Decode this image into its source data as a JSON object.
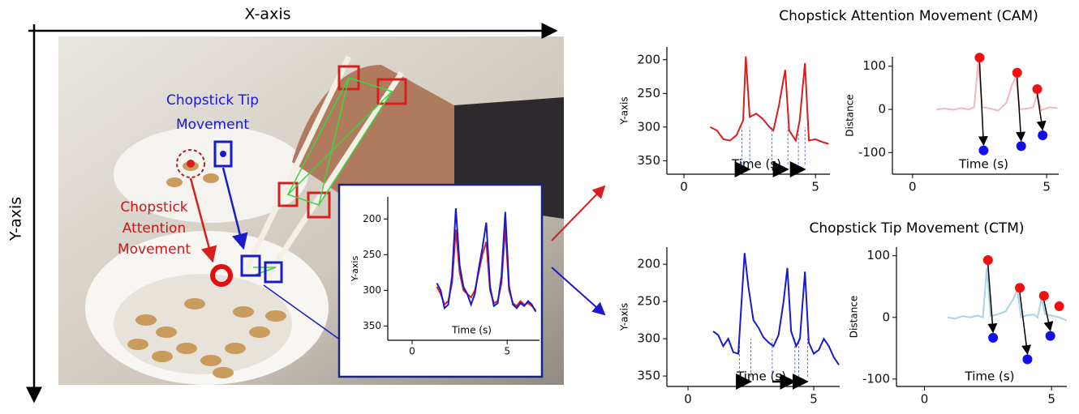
{
  "figure": {
    "x_axis_label": "X-axis",
    "y_axis_label": "Y-axis",
    "tip_label": [
      "Chopstick Tip",
      "Movement"
    ],
    "attention_label": [
      "Chopstick",
      "Attention",
      "Movement"
    ],
    "cam_title": "Chopstick Attention Movement (CAM)",
    "ctm_title": "Chopstick Tip Movement (CTM)"
  },
  "chart_data": [
    {
      "type": "line",
      "xlabel": "Time (s)",
      "ylabel": "Y-axis",
      "xlim": [
        -1.28,
        6.7
      ],
      "ylim": [
        370,
        169
      ],
      "xticks": [
        0,
        5
      ],
      "yticks": [
        200,
        250,
        300,
        350
      ],
      "series": [
        {
          "color": "#d62020",
          "x": [
            1.3,
            1.5,
            1.7,
            1.9,
            2.1,
            2.3,
            2.5,
            2.7,
            2.9,
            3.1,
            3.3,
            3.5,
            3.7,
            3.9,
            4.1,
            4.3,
            4.5,
            4.7,
            4.9,
            5.1,
            5.3,
            5.5,
            5.7,
            5.9,
            6.1,
            6.3,
            6.5
          ],
          "values": [
            295,
            305,
            320,
            315,
            290,
            215,
            275,
            300,
            305,
            310,
            300,
            275,
            250,
            232,
            300,
            318,
            315,
            290,
            212,
            300,
            318,
            322,
            315,
            320,
            318,
            322,
            328
          ]
        },
        {
          "color": "#1a1acc",
          "x": [
            1.3,
            1.5,
            1.7,
            1.9,
            2.1,
            2.3,
            2.5,
            2.7,
            2.9,
            3.1,
            3.3,
            3.5,
            3.7,
            3.9,
            4.1,
            4.3,
            4.5,
            4.7,
            4.9,
            5.1,
            5.3,
            5.5,
            5.7,
            5.9,
            6.1,
            6.3,
            6.5
          ],
          "values": [
            290,
            300,
            325,
            320,
            280,
            185,
            265,
            295,
            305,
            320,
            305,
            270,
            240,
            205,
            295,
            322,
            318,
            280,
            190,
            295,
            320,
            325,
            318,
            322,
            315,
            320,
            330
          ]
        }
      ]
    },
    {
      "type": "line",
      "xlabel": "Time (s)",
      "ylabel": "Y-axis",
      "xlim": [
        -0.65,
        5.55
      ],
      "ylim": [
        370,
        181
      ],
      "xticks": [
        0,
        5
      ],
      "yticks": [
        200,
        250,
        300,
        350
      ],
      "intervals": [
        [
          2.2,
          2.5
        ],
        [
          3.35,
          3.95
        ],
        [
          4.35,
          4.6
        ]
      ],
      "series": [
        {
          "color": "#d62020",
          "x": [
            1.0,
            1.25,
            1.5,
            1.75,
            2.0,
            2.25,
            2.35,
            2.5,
            2.75,
            3.0,
            3.25,
            3.4,
            3.6,
            3.85,
            4.0,
            4.25,
            4.4,
            4.6,
            4.75,
            5.0,
            5.25,
            5.5
          ],
          "values": [
            300,
            305,
            318,
            320,
            312,
            290,
            195,
            285,
            280,
            288,
            300,
            305,
            270,
            215,
            305,
            320,
            290,
            205,
            320,
            318,
            322,
            325
          ]
        }
      ]
    },
    {
      "type": "line",
      "xlabel": "Time (s)",
      "ylabel": "Distance",
      "arrows": true,
      "xlim": [
        -0.75,
        5.45
      ],
      "ylim": [
        -150,
        122
      ],
      "xticks": [
        0,
        5
      ],
      "yticks": [
        100,
        0,
        -100
      ],
      "series": [
        {
          "color": "#f4b6bf",
          "mode": "line",
          "x": [
            0.9,
            1.2,
            1.5,
            1.8,
            2.1,
            2.3,
            2.45,
            2.6,
            2.9,
            3.2,
            3.5,
            3.7,
            3.85,
            4.0,
            4.3,
            4.5,
            4.65,
            4.8,
            5.1,
            5.4
          ],
          "values": [
            0,
            2,
            -1,
            3,
            0,
            5,
            110,
            5,
            2,
            -3,
            15,
            55,
            75,
            0,
            2,
            5,
            35,
            -2,
            5,
            3
          ]
        },
        {
          "color": "#ee1111",
          "mode": "markers",
          "x": [
            2.5,
            3.9,
            4.65
          ],
          "values": [
            120,
            85,
            47
          ]
        },
        {
          "color": "#1010ee",
          "mode": "markers",
          "x": [
            2.65,
            4.05,
            4.85
          ],
          "values": [
            -95,
            -85,
            -60
          ]
        }
      ]
    },
    {
      "type": "line",
      "xlabel": "Time (s)",
      "ylabel": "Y-axis",
      "xlim": [
        -0.84,
        6.03
      ],
      "ylim": [
        364,
        177
      ],
      "xticks": [
        0,
        5
      ],
      "yticks": [
        200,
        250,
        300,
        350
      ],
      "intervals": [
        [
          2.05,
          2.5
        ],
        [
          3.35,
          4.25
        ],
        [
          4.4,
          4.75
        ]
      ],
      "series": [
        {
          "color": "#1a1acc",
          "x": [
            1.0,
            1.2,
            1.4,
            1.6,
            1.8,
            2.0,
            2.25,
            2.4,
            2.6,
            2.8,
            3.0,
            3.2,
            3.4,
            3.6,
            3.8,
            3.95,
            4.1,
            4.3,
            4.45,
            4.65,
            4.8,
            5.0,
            5.2,
            5.4,
            5.6,
            5.8,
            6.0
          ],
          "values": [
            290,
            295,
            310,
            300,
            318,
            320,
            185,
            230,
            275,
            285,
            298,
            305,
            310,
            295,
            250,
            205,
            290,
            310,
            300,
            210,
            305,
            320,
            315,
            300,
            310,
            325,
            335
          ]
        }
      ]
    },
    {
      "type": "line",
      "xlabel": "Time (s)",
      "ylabel": "Distance",
      "arrows": true,
      "xlim": [
        -1.1,
        5.6
      ],
      "ylim": [
        -112,
        114
      ],
      "xticks": [
        0,
        5
      ],
      "yticks": [
        100,
        0,
        -100
      ],
      "series": [
        {
          "color": "#a8d4e6",
          "mode": "line",
          "x": [
            0.9,
            1.2,
            1.5,
            1.8,
            2.1,
            2.3,
            2.45,
            2.6,
            2.9,
            3.2,
            3.5,
            3.65,
            3.8,
            4.0,
            4.3,
            4.45,
            4.6,
            4.75,
            5.0,
            5.3,
            5.6
          ],
          "values": [
            0,
            -2,
            2,
            0,
            3,
            0,
            80,
            2,
            5,
            10,
            30,
            45,
            0,
            3,
            5,
            0,
            30,
            5,
            3,
            0,
            -5
          ]
        },
        {
          "color": "#ee1111",
          "mode": "markers",
          "x": [
            2.5,
            3.75,
            4.7,
            5.3
          ],
          "values": [
            93,
            48,
            35,
            18
          ]
        },
        {
          "color": "#1010ee",
          "mode": "markers",
          "x": [
            2.7,
            4.05,
            4.95
          ],
          "values": [
            -33,
            -68,
            -30
          ]
        }
      ]
    }
  ]
}
